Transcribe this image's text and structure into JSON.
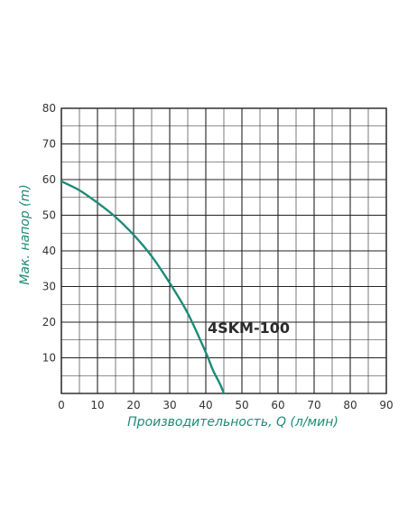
{
  "chart_data": {
    "type": "line",
    "xlabel": "Производительность, Q (л/мин)",
    "ylabel": "Мак. напор (m)",
    "xlim": [
      0,
      90
    ],
    "ylim": [
      0,
      80
    ],
    "x_ticks": [
      0,
      10,
      20,
      30,
      40,
      50,
      60,
      70,
      80,
      90
    ],
    "y_ticks": [
      10,
      20,
      30,
      40,
      50,
      60,
      70,
      80
    ],
    "grid": true,
    "series": [
      {
        "name": "4SKM-100",
        "color": "#1e8a78",
        "x": [
          0,
          5,
          10,
          15,
          20,
          25,
          30,
          35,
          40,
          42,
          44,
          45
        ],
        "y": [
          59.5,
          57,
          53.5,
          49.5,
          44.5,
          38.5,
          31,
          22.5,
          11.5,
          6.5,
          2.5,
          0
        ]
      }
    ],
    "annotation": {
      "text": "4SKM-100",
      "x": 40.5,
      "y": 17
    },
    "colors": {
      "grid": "#222222",
      "axis_title": "#1e8a78",
      "tick_label": "#333333"
    }
  }
}
